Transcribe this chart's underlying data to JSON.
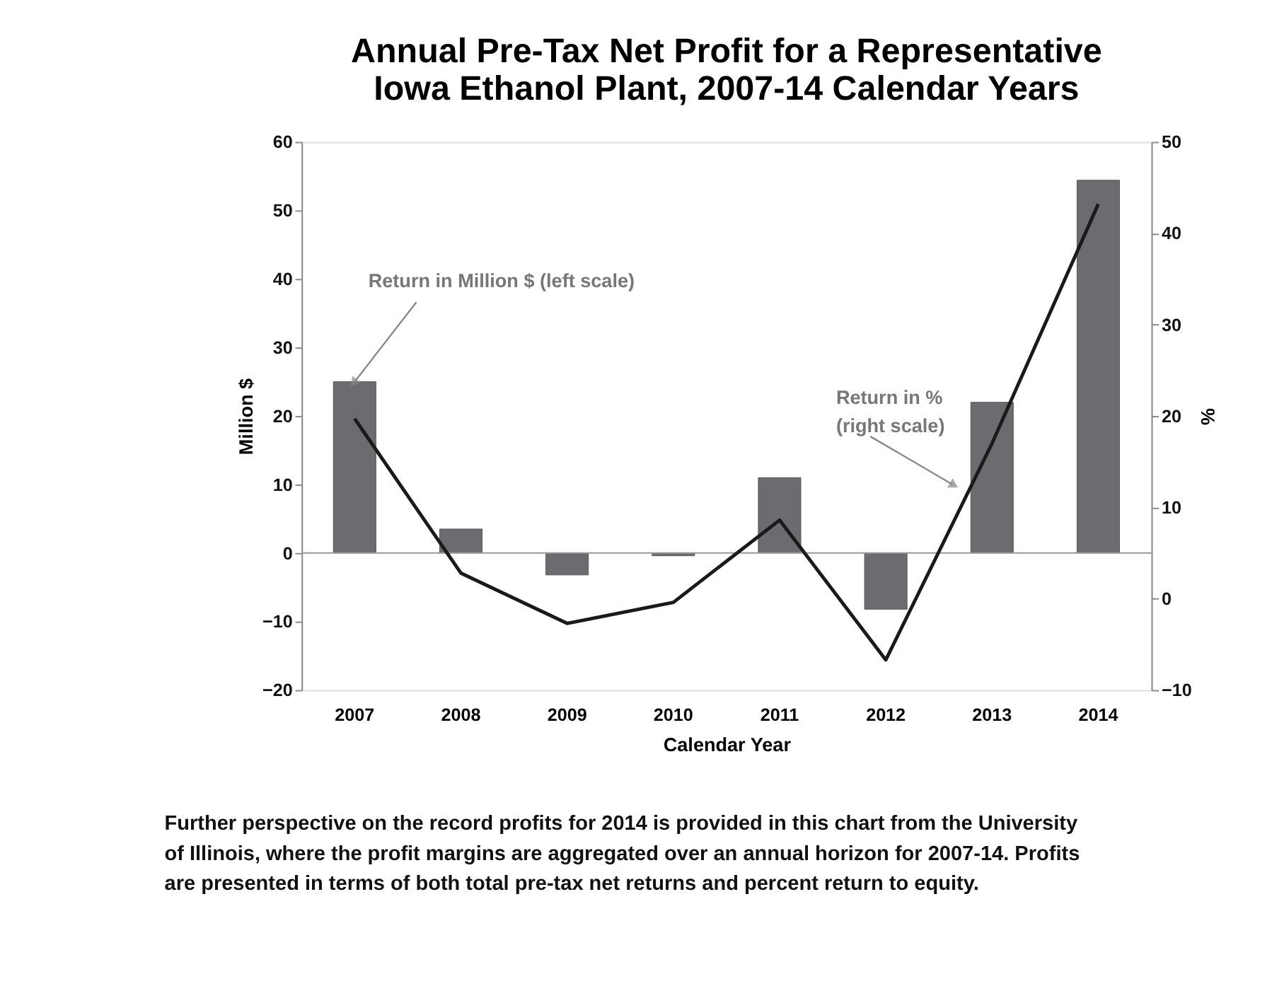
{
  "chart_data": {
    "type": "bar",
    "title": "Annual Pre-Tax Net Profit for a Representative\nIowa Ethanol Plant, 2007-14 Calendar Years",
    "xlabel": "Calendar Year",
    "ylabel": "Million $",
    "y2label": "%",
    "categories": [
      "2007",
      "2008",
      "2009",
      "2010",
      "2011",
      "2012",
      "2013",
      "2014"
    ],
    "series": [
      {
        "color": "#6b6b70",
        "values": [
          25,
          3.5,
          -3.2,
          -0.4,
          11,
          -8.2,
          22,
          54.4
        ]
      },
      {
        "type": "line",
        "axis": "y2",
        "color": "#1a1a1a",
        "values": [
          19.7,
          2.8,
          -2.7,
          -0.4,
          8.6,
          -6.7,
          17,
          43.2
        ]
      }
    ],
    "ylim": [
      -20,
      60
    ],
    "yticks": [
      -20,
      -10,
      0,
      10,
      20,
      30,
      40,
      50,
      60
    ],
    "y2lim": [
      -10,
      50
    ],
    "y2ticks": [
      -10,
      0,
      10,
      20,
      30,
      40,
      50
    ],
    "marker": "none",
    "line_style": "solid",
    "annotations": [
      {
        "text": "Return in Million $ (left scale)",
        "x": "2007",
        "y": 25
      },
      "Return in %\n(right scale)",
      "Further perspective on the record profits for 2014 is provided in this chart from the University\nof Illinois, where the profit margins are aggregated over an annual horizon for 2007-14. Profits\nare presented in terms of both total pre-tax net returns and percent return to equity."
    ]
  }
}
